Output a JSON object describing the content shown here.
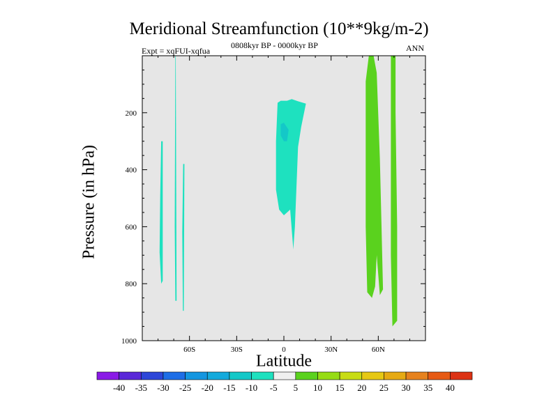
{
  "chart_data": {
    "type": "contour",
    "title": "Meridional Streamfunction (10**9kg/m-2)",
    "left_label": "Expt = xqFUI-xqfua",
    "center_label": "0808kyr BP - 0000kyr BP",
    "right_label": "ANN",
    "xlabel": "Latitude",
    "ylabel": "Pressure (in hPa)",
    "xlim": [
      -90,
      90
    ],
    "ylim": [
      1000,
      0
    ],
    "y_reversed": true,
    "x_ticks": [
      {
        "value": -60,
        "label": "60S"
      },
      {
        "value": -30,
        "label": "30S"
      },
      {
        "value": 0,
        "label": "0"
      },
      {
        "value": 30,
        "label": "30N"
      },
      {
        "value": 60,
        "label": "60N"
      }
    ],
    "y_ticks": [
      {
        "value": 200,
        "label": "200"
      },
      {
        "value": 400,
        "label": "400"
      },
      {
        "value": 600,
        "label": "600"
      },
      {
        "value": 800,
        "label": "800"
      },
      {
        "value": 1000,
        "label": "1000"
      }
    ],
    "background_color": "#e6e6e6",
    "levels": [
      -40,
      -35,
      -30,
      -25,
      -20,
      -15,
      -10,
      -5,
      5,
      10,
      15,
      20,
      25,
      30,
      35,
      40
    ],
    "colorbar_colors": [
      "#8a1ae6",
      "#5a28d8",
      "#2d46d8",
      "#1e6ee6",
      "#1496e0",
      "#14aadc",
      "#14c8c8",
      "#1ee1bf",
      "#f0f0f0",
      "#5ad21e",
      "#96dc14",
      "#c8dc14",
      "#e6c814",
      "#e6aa14",
      "#e6821e",
      "#e65a14",
      "#dc3214"
    ],
    "regions": [
      {
        "name": "sh-band-1",
        "color": "#1ee1bf",
        "points": [
          [
            -78,
            300
          ],
          [
            -77,
            300
          ],
          [
            -77,
            790
          ],
          [
            -78,
            800
          ],
          [
            -79,
            690
          ],
          [
            -78.6,
            490
          ]
        ]
      },
      {
        "name": "sh-band-2",
        "color": "#1ee1bf",
        "points": [
          [
            -69,
            0
          ],
          [
            -68.7,
            0
          ],
          [
            -68.2,
            860
          ],
          [
            -69,
            860
          ],
          [
            -69.4,
            600
          ]
        ]
      },
      {
        "name": "sh-band-3",
        "color": "#1ee1bf",
        "points": [
          [
            -64,
            380
          ],
          [
            -63.2,
            380
          ],
          [
            -63.6,
            895
          ],
          [
            -64.2,
            895
          ],
          [
            -64.6,
            620
          ]
        ]
      },
      {
        "name": "tropical-cell",
        "color": "#1ee1bf",
        "points": [
          [
            -4,
            165
          ],
          [
            -2,
            158
          ],
          [
            2,
            158
          ],
          [
            5,
            152
          ],
          [
            9,
            160
          ],
          [
            14,
            168
          ],
          [
            11,
            250
          ],
          [
            9,
            320
          ],
          [
            7,
            600
          ],
          [
            6,
            680
          ],
          [
            4,
            540
          ],
          [
            2,
            550
          ],
          [
            0,
            560
          ],
          [
            -3,
            540
          ],
          [
            -5,
            470
          ],
          [
            -5,
            300
          ]
        ]
      },
      {
        "name": "tropical-core",
        "color": "#14c8c8",
        "points": [
          [
            -2,
            240
          ],
          [
            0,
            235
          ],
          [
            3,
            260
          ],
          [
            2,
            300
          ],
          [
            0,
            300
          ],
          [
            -2,
            280
          ]
        ]
      },
      {
        "name": "nh-band-1",
        "color": "#5ad21e",
        "points": [
          [
            52,
            90
          ],
          [
            54,
            0
          ],
          [
            57,
            0
          ],
          [
            59,
            60
          ],
          [
            61,
            360
          ],
          [
            62,
            580
          ],
          [
            63,
            820
          ],
          [
            61,
            840
          ],
          [
            59,
            700
          ],
          [
            58,
            810
          ],
          [
            56,
            850
          ],
          [
            53,
            830
          ],
          [
            52,
            600
          ]
        ]
      },
      {
        "name": "nh-band-2",
        "color": "#5ad21e",
        "points": [
          [
            68,
            0
          ],
          [
            71,
            0
          ],
          [
            71,
            200
          ],
          [
            72,
            600
          ],
          [
            72,
            930
          ],
          [
            69,
            950
          ],
          [
            68,
            700
          ],
          [
            68,
            300
          ]
        ]
      }
    ]
  }
}
